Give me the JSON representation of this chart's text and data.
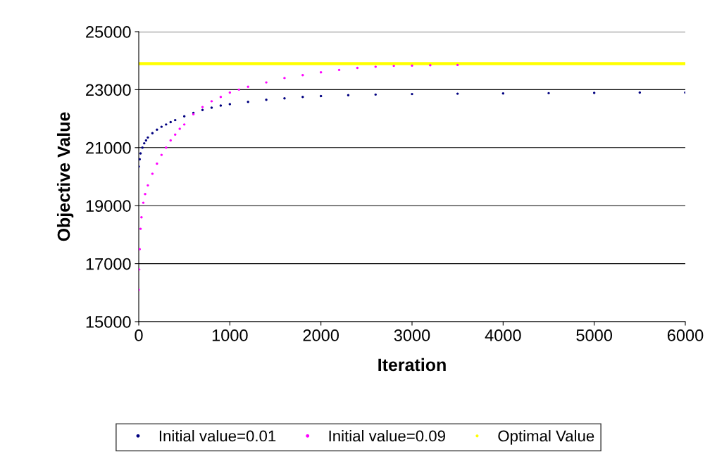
{
  "chart_data": {
    "type": "scatter",
    "xlabel": "Iteration",
    "ylabel": "Objective Value",
    "xlim": [
      0,
      6000
    ],
    "xticks": [
      0,
      1000,
      2000,
      3000,
      4000,
      5000,
      6000
    ],
    "ylim": [
      15000,
      25000
    ],
    "yticks": [
      15000,
      17000,
      19000,
      21000,
      23000,
      25000
    ],
    "grid": "y",
    "legend": "bottom",
    "series": [
      {
        "name": "Initial value=0.01",
        "color": "#000080",
        "marker": "circle",
        "x": [
          0,
          10,
          20,
          40,
          60,
          80,
          100,
          150,
          200,
          250,
          300,
          350,
          400,
          500,
          600,
          700,
          800,
          900,
          1000,
          1200,
          1400,
          1600,
          1800,
          2000,
          2300,
          2600,
          3000,
          3500,
          4000,
          4500,
          5000,
          5500,
          6000
        ],
        "values": [
          20350,
          20600,
          20800,
          21000,
          21150,
          21250,
          21350,
          21500,
          21620,
          21720,
          21800,
          21880,
          21950,
          22080,
          22200,
          22300,
          22380,
          22450,
          22500,
          22580,
          22650,
          22700,
          22750,
          22780,
          22810,
          22830,
          22850,
          22860,
          22870,
          22880,
          22890,
          22900,
          22900
        ]
      },
      {
        "name": "Initial value=0.09",
        "color": "#ff00ff",
        "marker": "circle",
        "x": [
          0,
          5,
          10,
          20,
          30,
          50,
          70,
          100,
          150,
          200,
          250,
          300,
          350,
          400,
          450,
          500,
          600,
          700,
          800,
          900,
          1000,
          1100,
          1200,
          1400,
          1600,
          1800,
          2000,
          2200,
          2400,
          2600,
          2800,
          3000,
          3200,
          3500
        ],
        "values": [
          16100,
          16800,
          17500,
          18200,
          18600,
          19100,
          19400,
          19700,
          20100,
          20450,
          20750,
          21000,
          21250,
          21450,
          21650,
          21800,
          22150,
          22400,
          22600,
          22750,
          22900,
          23000,
          23100,
          23250,
          23400,
          23500,
          23600,
          23680,
          23750,
          23790,
          23820,
          23830,
          23840,
          23850
        ]
      },
      {
        "name": "Optimal Value",
        "type": "line",
        "color": "#ffff00",
        "x": [
          0,
          6000
        ],
        "values": [
          23900,
          23900
        ]
      }
    ]
  }
}
